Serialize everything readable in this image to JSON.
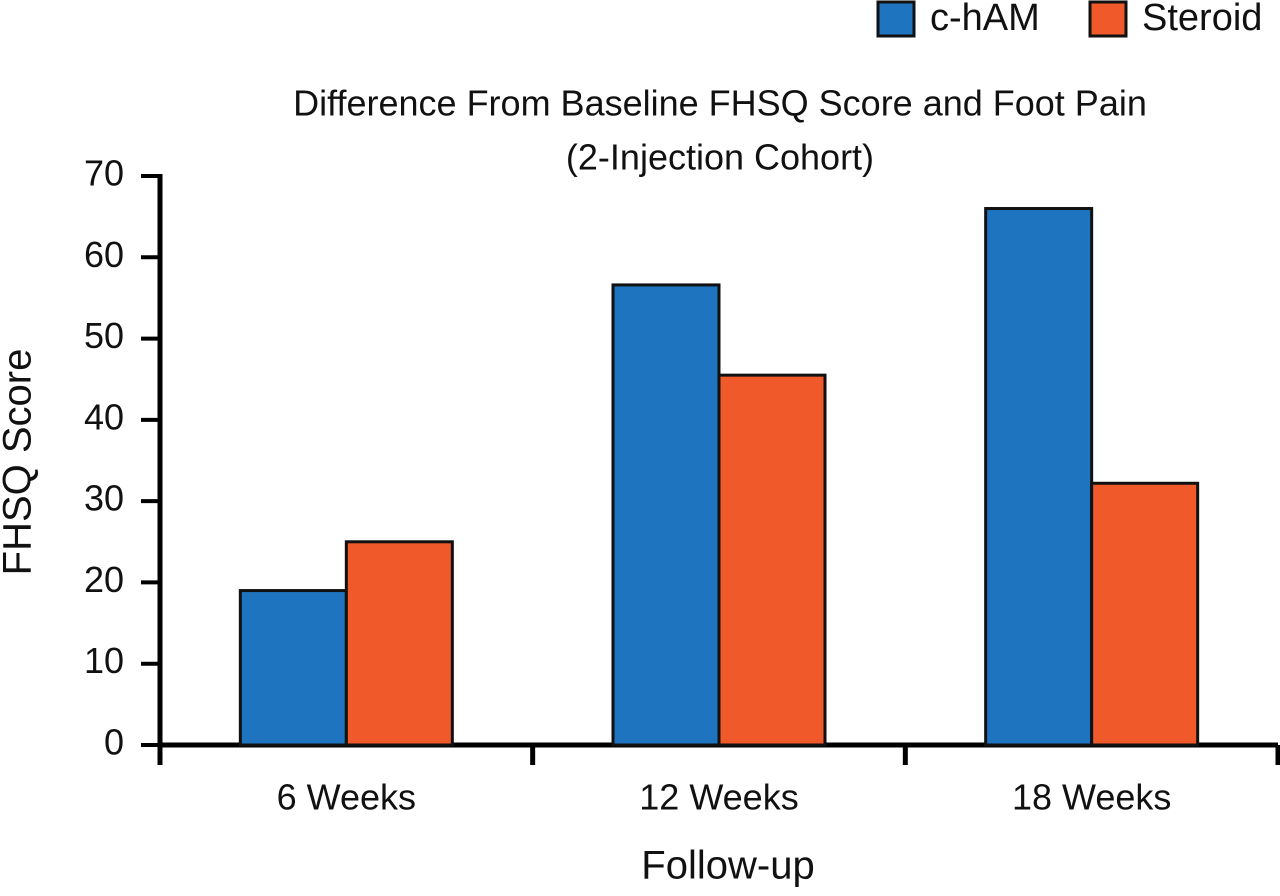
{
  "chart_data": {
    "type": "bar",
    "title": "Difference From Baseline FHSQ Score and Foot Pain",
    "subtitle": "(2-Injection Cohort)",
    "x_label": "Follow-up",
    "y_label": "FHSQ Score",
    "categories": [
      "6 Weeks",
      "12 Weeks",
      "18 Weeks"
    ],
    "series": [
      {
        "name": "c-hAM",
        "color": "#1f74c0",
        "values": [
          19,
          56.6,
          66
        ]
      },
      {
        "name": "Steroid",
        "color": "#f05a2a",
        "values": [
          25,
          45.5,
          32.2
        ]
      }
    ],
    "ylim": [
      0,
      70
    ],
    "yticks": [
      0,
      10,
      20,
      30,
      40,
      50,
      60,
      70
    ],
    "grid": false,
    "legend": "top-right"
  }
}
